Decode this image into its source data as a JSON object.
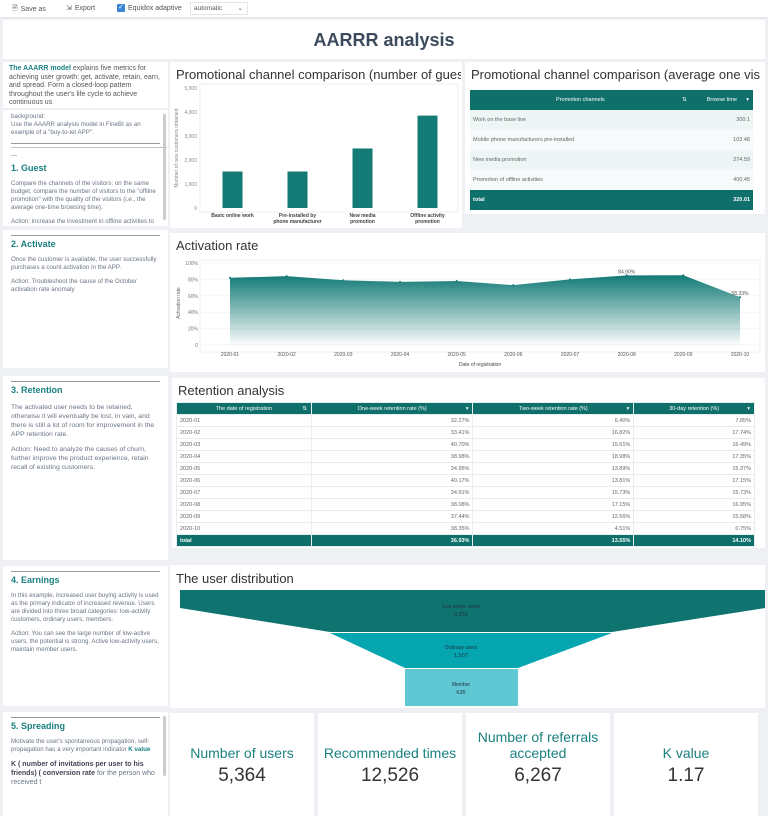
{
  "toolbar": {
    "save_as": "Save as",
    "export": "Export",
    "equidox": "Equidox adaptive",
    "equidox_checked": true,
    "mode": "automatic"
  },
  "title": "AARRR analysis",
  "left": {
    "intro": {
      "lead": "The AAARR model",
      "text": " explains five metrics for achieving user growth: get, activate, retain, earn, and spread. Form a closed-loop pattern throughout the user's life cycle to achieve continuous us"
    },
    "background": {
      "label": "background:",
      "text": "Use the AAARR analysis model in FineBI as an example of a \"buy-to-let APP\".",
      "rule": "—————————————————————————— —"
    },
    "guest": {
      "heading": "1. Guest",
      "p1": "Compare the channels of the visitors: on the same budget, compare the number of visitors to the \"offline promotion\" with the quality of the visitors (i.e., the average one-time browsing time).",
      "p2": "Action: increase the investment in offline activities to promote, to obtain the best results."
    },
    "activate": {
      "heading": "2. Activate",
      "p1": "Once the customer is available, the user successfully purchases a count activation in the APP.",
      "p2": "Action: Troubleshoot the cause of the October activation rate anomaly"
    },
    "retention": {
      "heading": "3. Retention",
      "p1": "The activated user needs to be retained, otherwise it will eventually be lost, in vain, and there is still a lot of room for improvement in the APP retention rate.",
      "p2": "Action: Need to analyze the causes of churn, further improve the product experience, retain recall of existing customers."
    },
    "earnings": {
      "heading": "4. Earnings",
      "p1": "In this example, increased user buying activity is used as the primary indicator of increased revenue. Users are divided into three broad categories: low-activity customers, ordinary users, members.",
      "p2": "Action: You can see the large number of low-active users, the potential is strong. Active low-activity users, maintain member users."
    },
    "spreading": {
      "heading": "5. Spreading",
      "p1": "Motivate the user's spontaneous propagation, self-propagation has a very important indicator ",
      "p1_bold": "K value",
      "p2_bold": "K ( number of invitations per user to his friends) ( conversion rate",
      "p2": " for the person who received t"
    }
  },
  "chart_data": [
    {
      "type": "bar",
      "title": "Promotional channel comparison (number of gues",
      "ylabel": "Number of new customers obtained",
      "categories": [
        "Basic online work",
        "Pre-installed by phone manufacturer",
        "New media promotion",
        "Offline activity promotion"
      ],
      "values": [
        1520,
        1520,
        2480,
        3850
      ],
      "ylim": [
        0,
        5000
      ],
      "yticks": [
        "0",
        "1,000",
        "2,000",
        "3,000",
        "4,000",
        "5,000"
      ],
      "color": "#137a76"
    },
    {
      "type": "area",
      "title": "Activation rate",
      "ylabel": "Activation rate",
      "xlabel": "Date of registration",
      "categories": [
        "2020-01",
        "2020-02",
        "2020-03",
        "2020-04",
        "2020-05",
        "2020-06",
        "2020-07",
        "2020-08",
        "2020-09",
        "2020-10"
      ],
      "values": [
        82,
        84,
        79,
        77,
        78,
        73,
        80,
        84.9,
        85,
        58.33
      ],
      "data_labels": {
        "7": "84.90%",
        "9": "58.33%"
      },
      "ylim": [
        0,
        100
      ],
      "yticks": [
        "0",
        "20%",
        "40%",
        "60%",
        "80%",
        "100%"
      ],
      "color": "#137a76"
    },
    {
      "type": "funnel",
      "title": "The user distribution",
      "categories": [
        "Low active users",
        "Ordinary users",
        "Member"
      ],
      "values": [
        "3,251",
        "1,507",
        "635"
      ],
      "colors": [
        "#0f736f",
        "#05a6b0",
        "#5fc8d3"
      ]
    }
  ],
  "table1": {
    "title": "Promotional channel comparison (average one vis",
    "headers": [
      "Promotion channels",
      "Browse time"
    ],
    "rows": [
      [
        "Work on the base line",
        "300.1"
      ],
      [
        "Mobile phone manufacturers pre-installed",
        "103.48"
      ],
      [
        "New media promotion",
        "274.59"
      ],
      [
        "Promotion of offline activities",
        "400.45"
      ]
    ],
    "total": [
      "total",
      "320.01"
    ]
  },
  "retention": {
    "title": "Retention analysis",
    "headers": [
      "The date of registration",
      "One-week retention rate (%)",
      "Two-week retention rate (%)",
      "30-day retention (%)"
    ],
    "rows": [
      [
        "2020-01",
        "32.27%",
        "6.40%",
        "7.85%"
      ],
      [
        "2020-02",
        "33.41%",
        "16.82%",
        "17.74%"
      ],
      [
        "2020-03",
        "40.70%",
        "15.61%",
        "16.49%"
      ],
      [
        "2020-04",
        "38.98%",
        "18.98%",
        "17.35%"
      ],
      [
        "2020-05",
        "34.95%",
        "13.89%",
        "15.37%"
      ],
      [
        "2020-06",
        "40.17%",
        "13.81%",
        "17.15%"
      ],
      [
        "2020-07",
        "34.91%",
        "15.73%",
        "15.73%"
      ],
      [
        "2020-08",
        "38.08%",
        "17.15%",
        "16.95%"
      ],
      [
        "2020-09",
        "37.44%",
        "12.56%",
        "15.58%"
      ],
      [
        "2020-10",
        "38.35%",
        "4.51%",
        "0.75%"
      ]
    ],
    "total": [
      "total",
      "36.93%",
      "13.55%",
      "14.10%"
    ]
  },
  "kpis": [
    {
      "label": "Number of users",
      "value": "5,364"
    },
    {
      "label": "Recommended times",
      "value": "12,526"
    },
    {
      "label": "Number of referrals accepted",
      "value": "6,267"
    },
    {
      "label": "K value",
      "value": "1.17"
    }
  ]
}
